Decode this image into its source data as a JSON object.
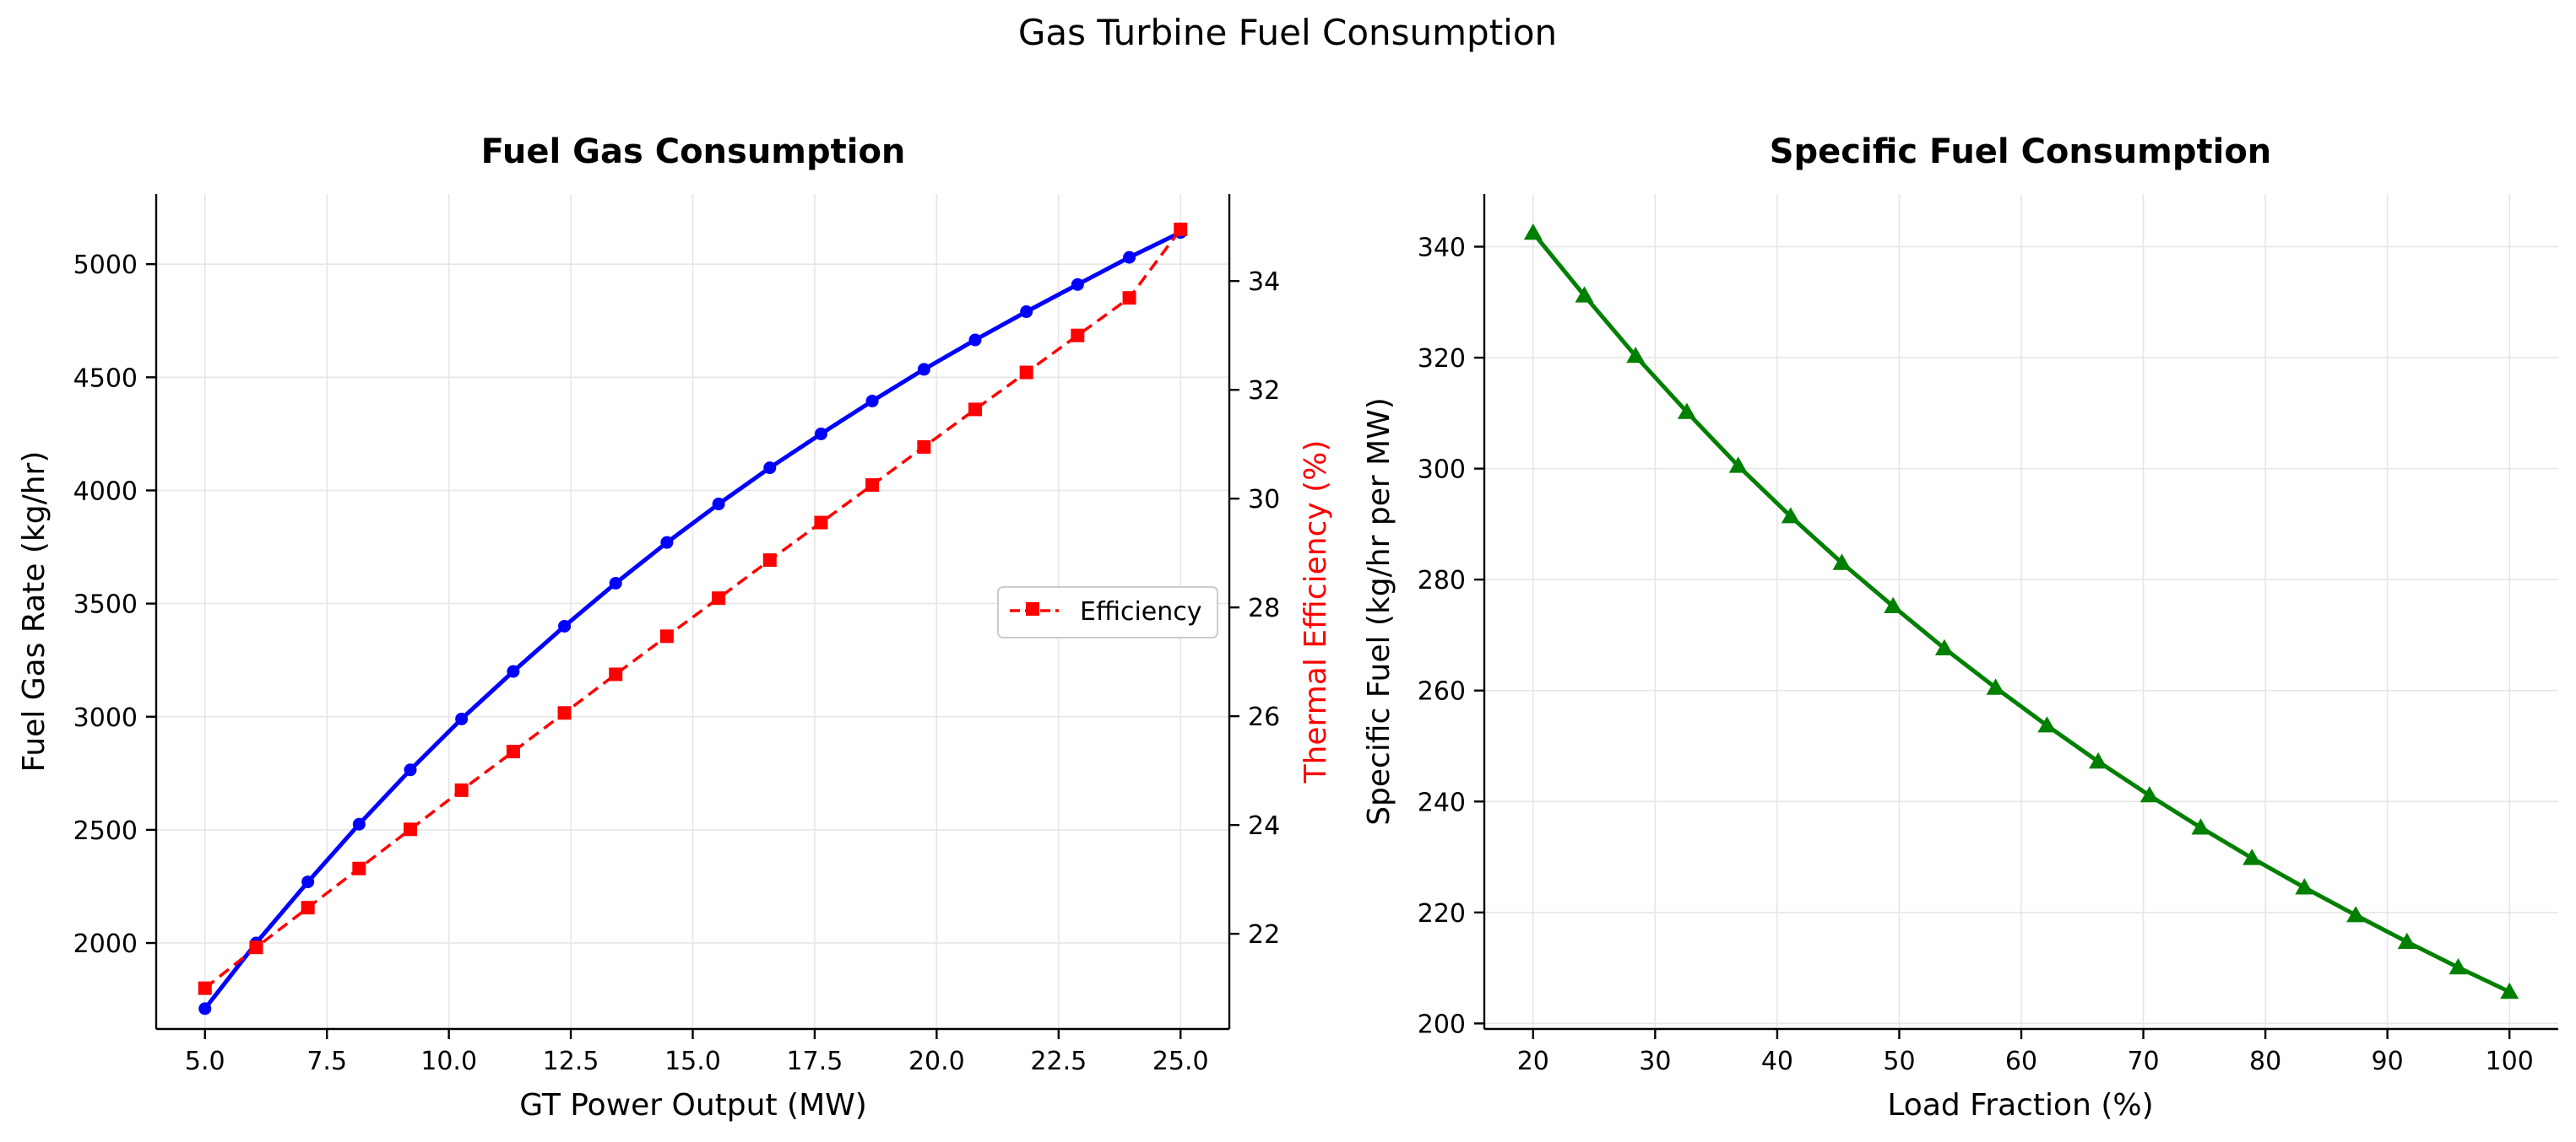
{
  "figure": {
    "title": "Gas Turbine Fuel Consumption"
  },
  "chart_data": [
    {
      "type": "line",
      "title": "Fuel Gas Consumption",
      "xlabel": "GT Power Output (MW)",
      "ylabel": "Fuel Gas Rate (kg/hr)",
      "y2label": "Thermal Efficiency (%)",
      "xlim": [
        4.0,
        26.0
      ],
      "ylim": [
        1620,
        5310
      ],
      "y2lim": [
        20.25,
        35.6
      ],
      "xticks": [
        5.0,
        7.5,
        10.0,
        12.5,
        15.0,
        17.5,
        20.0,
        22.5,
        25.0
      ],
      "xtick_labels": [
        "5.0",
        "7.5",
        "10.0",
        "12.5",
        "15.0",
        "17.5",
        "20.0",
        "22.5",
        "25.0"
      ],
      "yticks": [
        2000,
        2500,
        3000,
        3500,
        4000,
        4500,
        5000
      ],
      "ytick_labels": [
        "2000",
        "2500",
        "3000",
        "3500",
        "4000",
        "4500",
        "5000"
      ],
      "y2ticks": [
        22,
        24,
        26,
        28,
        30,
        32,
        34
      ],
      "y2tick_labels": [
        "22",
        "24",
        "26",
        "28",
        "30",
        "32",
        "34"
      ],
      "grid": true,
      "legend": {
        "position": "center-right",
        "entries": [
          "Efficiency"
        ]
      },
      "x": [
        5.0,
        6.05,
        7.11,
        8.16,
        9.21,
        10.26,
        11.32,
        12.37,
        13.42,
        14.47,
        15.53,
        16.58,
        17.63,
        18.68,
        19.74,
        20.79,
        21.84,
        22.89,
        23.95,
        25.0
      ],
      "series": [
        {
          "axis": "left",
          "color": "#0000ff",
          "marker": "circle",
          "linestyle": "solid",
          "values": [
            1710,
            2000,
            2270,
            2525,
            2765,
            2990,
            3200,
            3400,
            3590,
            3770,
            3940,
            4100,
            4250,
            4395,
            4535,
            4665,
            4790,
            4910,
            5030,
            5140
          ]
        },
        {
          "name": "Efficiency",
          "axis": "right",
          "color": "#ff0000",
          "marker": "square",
          "linestyle": "dashed",
          "values": [
            21.0,
            21.75,
            22.48,
            23.2,
            23.92,
            24.64,
            25.35,
            26.06,
            26.77,
            27.47,
            28.17,
            28.87,
            29.56,
            30.25,
            30.95,
            31.64,
            32.32,
            33.0,
            33.69,
            34.95
          ]
        }
      ]
    },
    {
      "type": "line",
      "title": "Specific Fuel Consumption",
      "xlabel": "Load Fraction (%)",
      "ylabel": "Specific Fuel (kg/hr per MW)",
      "xlim": [
        16,
        104
      ],
      "ylim": [
        199,
        349.5
      ],
      "xticks": [
        20,
        30,
        40,
        50,
        60,
        70,
        80,
        90,
        100
      ],
      "xtick_labels": [
        "20",
        "30",
        "40",
        "50",
        "60",
        "70",
        "80",
        "90",
        "100"
      ],
      "yticks": [
        200,
        220,
        240,
        260,
        280,
        300,
        320,
        340
      ],
      "ytick_labels": [
        "200",
        "220",
        "240",
        "260",
        "280",
        "300",
        "320",
        "340"
      ],
      "grid": true,
      "x": [
        20.0,
        24.2,
        28.4,
        32.6,
        36.8,
        41.1,
        45.3,
        49.5,
        53.7,
        57.9,
        62.1,
        66.3,
        70.5,
        74.7,
        78.9,
        83.2,
        87.4,
        91.6,
        95.8,
        100.0
      ],
      "series": [
        {
          "color": "#008000",
          "marker": "triangle",
          "linestyle": "solid",
          "values": [
            342.5,
            331.2,
            320.3,
            310.2,
            300.5,
            291.4,
            283.0,
            275.2,
            267.6,
            260.5,
            253.7,
            247.2,
            241.1,
            235.3,
            229.8,
            224.5,
            219.5,
            214.7,
            210.1,
            205.7
          ]
        }
      ]
    }
  ]
}
